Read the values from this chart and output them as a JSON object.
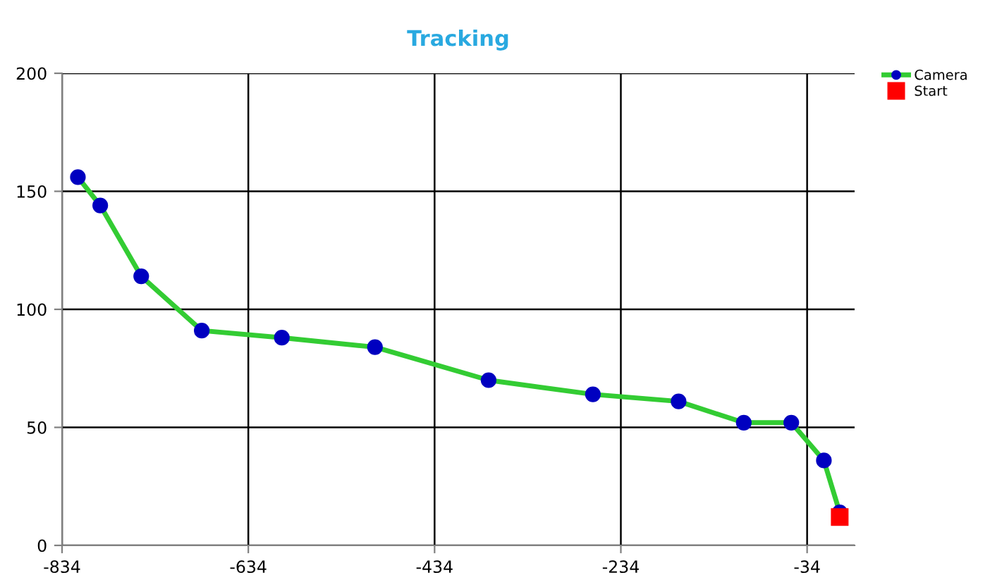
{
  "chart_data": {
    "type": "line",
    "title": "Tracking",
    "series": [
      {
        "name": "Camera",
        "color": "#33cc33",
        "marker": "circle",
        "colors": [
          "#0000c0",
          "#0000c0",
          "#0000c0",
          "#0000c0",
          "#0000c0",
          "#0000c0",
          "#0000c0",
          "#0000c0",
          "#0000c0",
          "#0000c0",
          "#0000c0",
          "#0000c0",
          "#0000c0"
        ],
        "x": [
          -817,
          -793,
          -749,
          -684,
          -598,
          -498,
          -376,
          -264,
          -172,
          -102,
          -51,
          -16,
          1
        ],
        "values": [
          156,
          144,
          114,
          91,
          88,
          84,
          70,
          64,
          61,
          52,
          52,
          36,
          14
        ]
      },
      {
        "name": "Start",
        "type": "scatter",
        "color": "#ff0000",
        "marker": "square",
        "x": [
          1
        ],
        "values": [
          12
        ]
      }
    ],
    "xlim": [
      -834,
      17
    ],
    "xticks": [
      -834,
      -634,
      -434,
      -234,
      -34
    ],
    "ylim": [
      0,
      200
    ],
    "yticks": [
      0,
      50,
      100,
      150,
      200
    ],
    "grid": true,
    "legend": "top right"
  }
}
